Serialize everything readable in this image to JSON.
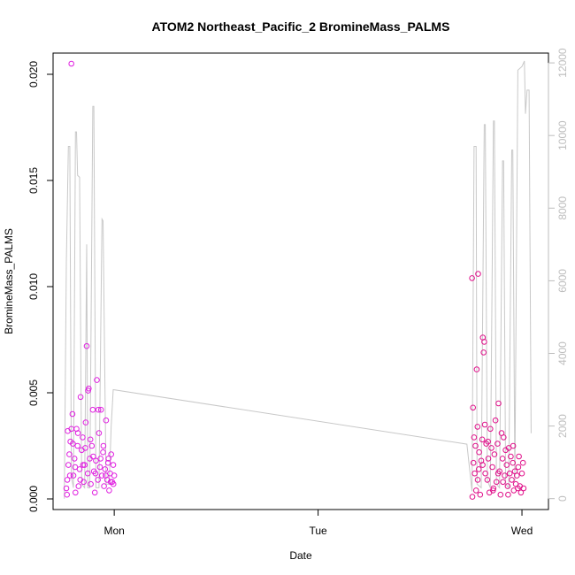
{
  "chart_data": {
    "type": "scatter",
    "title": "ATOM2 Northeast_Pacific_2 BromineMass_PALMS",
    "xlabel": "Date",
    "ylabel": "BromineMass_PALMS",
    "x_ticks": [
      {
        "x": 1.0,
        "label": "Mon"
      },
      {
        "x": 2.0,
        "label": "Tue"
      },
      {
        "x": 3.0,
        "label": "Wed"
      }
    ],
    "y_ticks": [
      {
        "y": 0.0,
        "label": "0.000"
      },
      {
        "y": 0.005,
        "label": "0.005"
      },
      {
        "y": 0.01,
        "label": "0.010"
      },
      {
        "y": 0.015,
        "label": "0.015"
      },
      {
        "y": 0.02,
        "label": "0.020"
      }
    ],
    "y2_ticks": [
      {
        "y": 0,
        "label": "0"
      },
      {
        "y": 2000,
        "label": "2000"
      },
      {
        "y": 4000,
        "label": "4000"
      },
      {
        "y": 6000,
        "label": "6000"
      },
      {
        "y": 8000,
        "label": "8000"
      },
      {
        "y": 10000,
        "label": "10000"
      },
      {
        "y": 12000,
        "label": "12000"
      }
    ],
    "xlim": [
      0.7,
      3.13
    ],
    "ylim": [
      -0.0005,
      0.021
    ],
    "y2lim": [
      -300,
      12270
    ],
    "grid": false,
    "colors": {
      "points_first": "#e020e0",
      "points_second": "#e0108a",
      "line": "#c8c8c8",
      "right_axis": "#bdbdbd"
    },
    "series": [
      {
        "type": "line",
        "axis": "right",
        "points": [
          [
            0.755,
            0
          ],
          [
            0.765,
            6500
          ],
          [
            0.775,
            9700
          ],
          [
            0.782,
            9700
          ],
          [
            0.79,
            600
          ],
          [
            0.8,
            300
          ],
          [
            0.81,
            10100
          ],
          [
            0.815,
            10100
          ],
          [
            0.82,
            8900
          ],
          [
            0.83,
            8850
          ],
          [
            0.84,
            400
          ],
          [
            0.855,
            300
          ],
          [
            0.865,
            7000
          ],
          [
            0.87,
            300
          ],
          [
            0.88,
            300
          ],
          [
            0.895,
            10800
          ],
          [
            0.9,
            10800
          ],
          [
            0.91,
            300
          ],
          [
            0.925,
            300
          ],
          [
            0.94,
            7700
          ],
          [
            0.945,
            7650
          ],
          [
            0.96,
            400
          ],
          [
            0.975,
            400
          ],
          [
            0.985,
            2000
          ],
          [
            0.995,
            3000
          ],
          [
            2.73,
            1500
          ],
          [
            2.755,
            200
          ],
          [
            2.765,
            9700
          ],
          [
            2.775,
            9700
          ],
          [
            2.78,
            400
          ],
          [
            2.8,
            300
          ],
          [
            2.815,
            10300
          ],
          [
            2.82,
            10300
          ],
          [
            2.83,
            500
          ],
          [
            2.845,
            300
          ],
          [
            2.86,
            10400
          ],
          [
            2.865,
            10400
          ],
          [
            2.875,
            400
          ],
          [
            2.89,
            300
          ],
          [
            2.905,
            9300
          ],
          [
            2.91,
            9300
          ],
          [
            2.92,
            400
          ],
          [
            2.935,
            300
          ],
          [
            2.95,
            9600
          ],
          [
            2.955,
            9600
          ],
          [
            2.965,
            500
          ],
          [
            2.98,
            11800
          ],
          [
            3.0,
            11900
          ],
          [
            3.012,
            12050
          ],
          [
            3.017,
            10600
          ],
          [
            3.025,
            11250
          ],
          [
            3.035,
            11250
          ],
          [
            3.045,
            1800
          ]
        ]
      },
      {
        "type": "scatter",
        "axis": "left",
        "color": "#e020e0",
        "points": [
          [
            0.765,
            0.0005
          ],
          [
            0.77,
            0.0009
          ],
          [
            0.775,
            0.0016
          ],
          [
            0.78,
            0.0021
          ],
          [
            0.785,
            0.0027
          ],
          [
            0.79,
            0.0033
          ],
          [
            0.795,
            0.004
          ],
          [
            0.8,
            0.0011
          ],
          [
            0.805,
            0.0019
          ],
          [
            0.81,
            0.0003
          ],
          [
            0.815,
            0.0033
          ],
          [
            0.82,
            0.0025
          ],
          [
            0.825,
            0.0006
          ],
          [
            0.83,
            0.0014
          ],
          [
            0.835,
            0.0048
          ],
          [
            0.84,
            0.0023
          ],
          [
            0.845,
            0.0029
          ],
          [
            0.85,
            0.0008
          ],
          [
            0.855,
            0.0016
          ],
          [
            0.86,
            0.0036
          ],
          [
            0.865,
            0.0072
          ],
          [
            0.87,
            0.0012
          ],
          [
            0.875,
            0.0052
          ],
          [
            0.88,
            0.0019
          ],
          [
            0.885,
            0.0007
          ],
          [
            0.89,
            0.0025
          ],
          [
            0.895,
            0.0042
          ],
          [
            0.9,
            0.0013
          ],
          [
            0.905,
            0.0003
          ],
          [
            0.91,
            0.0018
          ],
          [
            0.915,
            0.0056
          ],
          [
            0.92,
            0.0009
          ],
          [
            0.925,
            0.0031
          ],
          [
            0.93,
            0.0015
          ],
          [
            0.935,
            0.0042
          ],
          [
            0.94,
            0.0011
          ],
          [
            0.945,
            0.0022
          ],
          [
            0.95,
            0.0006
          ],
          [
            0.955,
            0.0014
          ],
          [
            0.96,
            0.0037
          ],
          [
            0.965,
            0.0009
          ],
          [
            0.97,
            0.0017
          ],
          [
            0.975,
            0.0004
          ],
          [
            0.98,
            0.0012
          ],
          [
            0.985,
            0.0021
          ],
          [
            0.99,
            0.0008
          ],
          [
            0.995,
            0.0016
          ],
          [
            1.0,
            0.0011
          ],
          [
            0.79,
            0.0205
          ],
          [
            0.772,
            0.0032
          ],
          [
            0.797,
            0.0026
          ],
          [
            0.822,
            0.0031
          ],
          [
            0.847,
            0.0016
          ],
          [
            0.872,
            0.0051
          ],
          [
            0.897,
            0.002
          ],
          [
            0.922,
            0.0042
          ],
          [
            0.947,
            0.0025
          ],
          [
            0.972,
            0.0019
          ],
          [
            0.996,
            0.0007
          ],
          [
            0.768,
            0.0002
          ],
          [
            0.783,
            0.0011
          ],
          [
            0.808,
            0.0015
          ],
          [
            0.833,
            0.0009
          ],
          [
            0.858,
            0.0024
          ],
          [
            0.883,
            0.0028
          ],
          [
            0.908,
            0.0012
          ],
          [
            0.933,
            0.0019
          ],
          [
            0.958,
            0.0011
          ],
          [
            0.983,
            0.0008
          ]
        ]
      },
      {
        "type": "scatter",
        "axis": "left",
        "color": "#e0108a",
        "points": [
          [
            2.755,
            0.0104
          ],
          [
            2.76,
            0.0043
          ],
          [
            2.762,
            0.0017
          ],
          [
            2.765,
            0.0029
          ],
          [
            2.768,
            0.0012
          ],
          [
            2.772,
            0.0025
          ],
          [
            2.775,
            0.0004
          ],
          [
            2.778,
            0.0061
          ],
          [
            2.782,
            0.0034
          ],
          [
            2.785,
            0.0106
          ],
          [
            2.788,
            0.0014
          ],
          [
            2.79,
            0.0022
          ],
          [
            2.795,
            0.0002
          ],
          [
            2.8,
            0.0018
          ],
          [
            2.805,
            0.0028
          ],
          [
            2.808,
            0.0076
          ],
          [
            2.812,
            0.0069
          ],
          [
            2.815,
            0.0074
          ],
          [
            2.818,
            0.0035
          ],
          [
            2.82,
            0.0012
          ],
          [
            2.825,
            0.0026
          ],
          [
            2.83,
            0.0009
          ],
          [
            2.835,
            0.0019
          ],
          [
            2.84,
            0.0003
          ],
          [
            2.845,
            0.0033
          ],
          [
            2.85,
            0.0024
          ],
          [
            2.855,
            0.0015
          ],
          [
            2.86,
            0.0005
          ],
          [
            2.865,
            0.0021
          ],
          [
            2.87,
            0.0037
          ],
          [
            2.875,
            0.0008
          ],
          [
            2.88,
            0.0026
          ],
          [
            2.885,
            0.0045
          ],
          [
            2.89,
            0.0013
          ],
          [
            2.895,
            0.0002
          ],
          [
            2.9,
            0.0031
          ],
          [
            2.905,
            0.0019
          ],
          [
            2.91,
            0.0029
          ],
          [
            2.915,
            0.0011
          ],
          [
            2.92,
            0.0023
          ],
          [
            2.925,
            0.0016
          ],
          [
            2.93,
            0.0006
          ],
          [
            2.935,
            0.0024
          ],
          [
            2.94,
            0.0012
          ],
          [
            2.945,
            0.002
          ],
          [
            2.95,
            0.0009
          ],
          [
            2.955,
            0.0017
          ],
          [
            2.96,
            0.0004
          ],
          [
            2.965,
            0.0013
          ],
          [
            2.97,
            0.0007
          ],
          [
            2.975,
            0.0011
          ],
          [
            2.98,
            0.0005
          ],
          [
            2.985,
            0.002
          ],
          [
            2.99,
            0.0006
          ],
          [
            2.995,
            0.0003
          ],
          [
            3.0,
            0.0012
          ],
          [
            3.005,
            0.0017
          ],
          [
            2.757,
            0.0001
          ],
          [
            2.783,
            0.0009
          ],
          [
            2.807,
            0.0016
          ],
          [
            2.833,
            0.0027
          ],
          [
            2.858,
            0.0004
          ],
          [
            2.883,
            0.0012
          ],
          [
            2.907,
            0.0008
          ],
          [
            2.932,
            0.0002
          ],
          [
            2.957,
            0.0025
          ],
          [
            2.982,
            0.0015
          ],
          [
            3.008,
            0.0005
          ]
        ]
      }
    ]
  }
}
